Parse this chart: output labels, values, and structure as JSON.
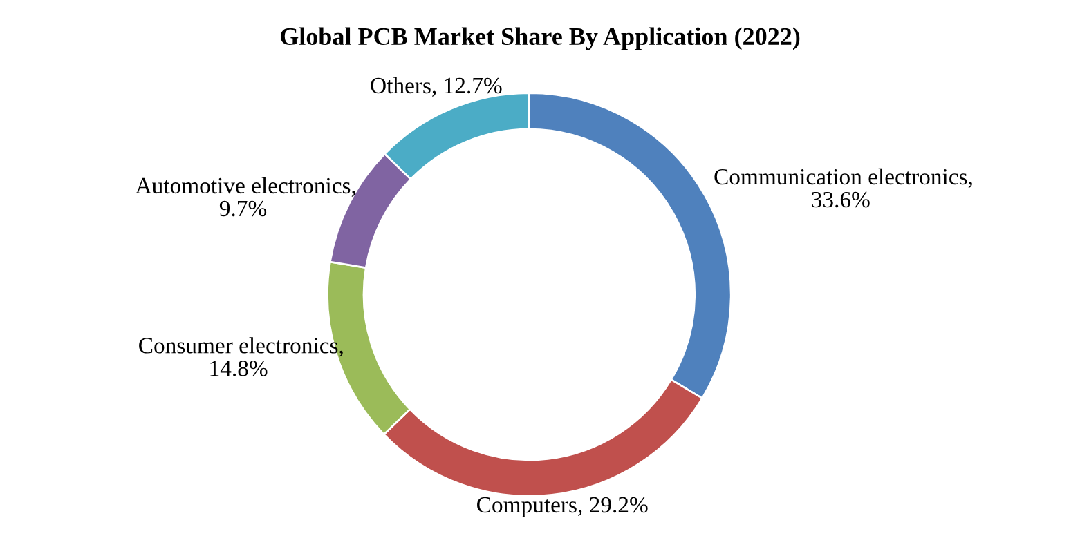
{
  "chart_data": {
    "type": "donut",
    "title": "Global PCB Market Share By Application (2022)",
    "categories": [
      "Communication electronics",
      "Computers",
      "Consumer electronics",
      "Automotive electronics",
      "Others"
    ],
    "values": [
      33.6,
      29.2,
      14.8,
      9.7,
      12.7
    ],
    "value_labels": [
      ", 33.6%",
      ", 29.2%",
      ", 14.8%",
      ", 9.7%",
      ", 12.7%"
    ],
    "colors": [
      "#4f81bd",
      "#c0504d",
      "#9bbb59",
      "#8064a2",
      "#4bacc6"
    ],
    "legend": false
  }
}
